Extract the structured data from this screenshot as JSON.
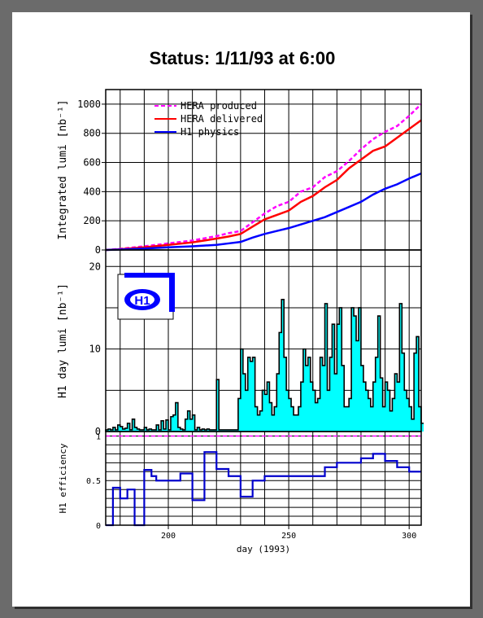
{
  "title": "Status:  1/11/93  at 6:00",
  "colors": {
    "produced": "#ff00ff",
    "delivered": "#ff0000",
    "physics": "#0000ff",
    "daylumi_fill": "#00ffff",
    "efficiency": "#0000cc",
    "logo": "#0000ff"
  },
  "chart_data": [
    {
      "type": "line",
      "ylabel": "Integrated lumi [nb⁻¹]",
      "ylim": [
        0,
        1100
      ],
      "xlim": [
        174,
        305
      ],
      "yticks": [
        "0",
        "200",
        "400",
        "600",
        "800",
        "1000"
      ],
      "legend_position": "top-left",
      "series": [
        {
          "name": "HERA produced",
          "style": "dashed",
          "x": [
            174,
            180,
            190,
            200,
            210,
            220,
            225,
            230,
            235,
            240,
            245,
            250,
            255,
            260,
            265,
            270,
            275,
            280,
            285,
            290,
            295,
            300,
            305
          ],
          "y": [
            0,
            8,
            25,
            45,
            65,
            95,
            115,
            130,
            190,
            250,
            300,
            330,
            400,
            430,
            500,
            540,
            610,
            690,
            760,
            810,
            850,
            920,
            1000
          ]
        },
        {
          "name": "HERA delivered",
          "style": "solid",
          "x": [
            174,
            180,
            190,
            200,
            210,
            220,
            225,
            230,
            235,
            240,
            245,
            250,
            255,
            260,
            265,
            270,
            275,
            280,
            285,
            290,
            295,
            300,
            305
          ],
          "y": [
            0,
            5,
            18,
            35,
            52,
            78,
            92,
            110,
            160,
            210,
            240,
            270,
            330,
            370,
            430,
            480,
            560,
            620,
            680,
            710,
            770,
            830,
            890
          ]
        },
        {
          "name": "H1 physics",
          "style": "solid",
          "x": [
            174,
            180,
            190,
            200,
            210,
            220,
            225,
            230,
            235,
            240,
            245,
            250,
            255,
            260,
            265,
            270,
            275,
            280,
            285,
            290,
            295,
            300,
            305
          ],
          "y": [
            0,
            3,
            10,
            18,
            25,
            35,
            45,
            55,
            85,
            110,
            130,
            150,
            175,
            200,
            225,
            260,
            295,
            330,
            380,
            420,
            450,
            490,
            525
          ]
        }
      ]
    },
    {
      "type": "bar",
      "ylabel": "H1 day lumi [nb⁻¹]",
      "ylim": [
        0,
        20
      ],
      "yticks": [
        "0",
        "10",
        "20"
      ],
      "x": [
        174,
        175,
        176,
        177,
        178,
        179,
        180,
        181,
        182,
        183,
        184,
        185,
        186,
        187,
        188,
        189,
        190,
        191,
        192,
        193,
        194,
        195,
        196,
        197,
        198,
        199,
        200,
        201,
        202,
        203,
        204,
        205,
        206,
        207,
        208,
        209,
        210,
        211,
        212,
        213,
        214,
        215,
        216,
        217,
        218,
        219,
        220,
        221,
        222,
        223,
        224,
        225,
        226,
        227,
        228,
        229,
        230,
        231,
        232,
        233,
        234,
        235,
        236,
        237,
        238,
        239,
        240,
        241,
        242,
        243,
        244,
        245,
        246,
        247,
        248,
        249,
        250,
        251,
        252,
        253,
        254,
        255,
        256,
        257,
        258,
        259,
        260,
        261,
        262,
        263,
        264,
        265,
        266,
        267,
        268,
        269,
        270,
        271,
        272,
        273,
        274,
        275,
        276,
        277,
        278,
        279,
        280,
        281,
        282,
        283,
        284,
        285,
        286,
        287,
        288,
        289,
        290,
        291,
        292,
        293,
        294,
        295,
        296,
        297,
        298,
        299,
        300,
        301,
        302,
        303,
        304,
        305
      ],
      "values": [
        0.2,
        0.3,
        0.2,
        0.5,
        0.2,
        0.8,
        0.6,
        0.3,
        0.4,
        1.0,
        0.2,
        1.5,
        0.5,
        0.3,
        0.2,
        0.2,
        0.5,
        0.2,
        0.3,
        0.2,
        0.2,
        0.8,
        0.2,
        1.3,
        0.3,
        1.4,
        0.2,
        1.8,
        2.0,
        3.5,
        0.5,
        0.3,
        0.2,
        1.5,
        2.5,
        1.5,
        2.0,
        0.2,
        0.5,
        0.2,
        0.3,
        0.2,
        0.3,
        0.2,
        0.2,
        0.2,
        6.3,
        0.2,
        0.2,
        0.2,
        0.2,
        0.2,
        0.2,
        0.2,
        0.2,
        4.0,
        10.0,
        7.0,
        5.0,
        9.0,
        8.5,
        9.0,
        3.0,
        2.0,
        2.5,
        5.0,
        4.5,
        6.0,
        3.5,
        2.0,
        3.0,
        7.0,
        12.0,
        16.0,
        9.0,
        5.0,
        4.0,
        3.0,
        2.0,
        2.0,
        3.0,
        6.0,
        10.0,
        8.0,
        9.0,
        6.0,
        5.0,
        3.5,
        4.0,
        9.0,
        8.0,
        15.5,
        5.0,
        9.0,
        13.0,
        7.0,
        13.0,
        15.0,
        8.0,
        3.0,
        3.0,
        4.0,
        15.0,
        14.0,
        11.0,
        15.0,
        8.0,
        6.0,
        5.0,
        4.0,
        3.0,
        6.0,
        9.0,
        14.0,
        6.5,
        3.0,
        6.0,
        5.0,
        2.5,
        4.0,
        7.0,
        6.0,
        15.5,
        9.5,
        5.0,
        4.0,
        3.0,
        1.5,
        9.5,
        11.5,
        3.0,
        1.0
      ]
    },
    {
      "type": "line",
      "ylabel": "H1 efficiency",
      "xlabel": "day (1993)",
      "ylim": [
        0,
        1.05
      ],
      "yticks": [
        "0",
        "0.5",
        "1"
      ],
      "xticks": [
        "200",
        "250",
        "300"
      ],
      "reference_line": 1.0,
      "series": [
        {
          "name": "",
          "x": [
            174,
            177,
            180,
            183,
            186,
            190,
            193,
            195,
            200,
            205,
            210,
            215,
            220,
            225,
            230,
            235,
            240,
            245,
            250,
            255,
            260,
            265,
            270,
            275,
            280,
            285,
            290,
            295,
            300,
            305
          ],
          "y": [
            0.0,
            0.42,
            0.3,
            0.4,
            0.0,
            0.62,
            0.55,
            0.5,
            0.5,
            0.58,
            0.28,
            0.82,
            0.63,
            0.55,
            0.32,
            0.5,
            0.55,
            0.55,
            0.55,
            0.55,
            0.55,
            0.65,
            0.7,
            0.7,
            0.75,
            0.8,
            0.72,
            0.65,
            0.6,
            0.6
          ],
          "steps": true
        }
      ]
    }
  ]
}
